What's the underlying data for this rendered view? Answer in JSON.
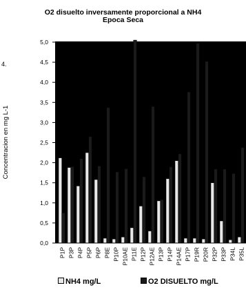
{
  "chart_data": {
    "type": "bar",
    "title": "O2 disuelto inversamente proporcional a NH4",
    "subtitle": "Epoca Seca",
    "ylabel": "Concentracion en mg L-1",
    "xlabel": "",
    "corner_mark": "4.",
    "ylim": [
      0,
      5
    ],
    "yticks": [
      "0,0",
      "0,5",
      "1,0",
      "1,5",
      "2,0",
      "2,5",
      "3,0",
      "3,5",
      "4,0",
      "4,5",
      "5,0"
    ],
    "grid": false,
    "legend_position": "bottom",
    "categories": [
      "P1P",
      "P3P",
      "P4P",
      "P5P",
      "P6P",
      "P8E",
      "P10P",
      "P10AE",
      "P11E",
      "P12P",
      "P12AE",
      "P13P",
      "P14P",
      "P14AE",
      "P17P",
      "P19R",
      "P20R",
      "P32P",
      "P33P",
      "P34L",
      "P35L"
    ],
    "series": [
      {
        "name": "NH4 mg/L",
        "color": "#e8e8e8",
        "values": [
          2.12,
          1.88,
          1.42,
          2.25,
          1.58,
          0.12,
          0.1,
          0.15,
          0.38,
          0.92,
          0.3,
          1.05,
          1.6,
          2.05,
          0.12,
          0.12,
          0.1,
          1.5,
          0.55,
          0.08,
          0.15
        ]
      },
      {
        "name": "O2 DISUELTO mg/L",
        "color": "#1a1a1a",
        "values": [
          0.75,
          1.9,
          2.1,
          2.65,
          1.92,
          3.37,
          1.77,
          1.85,
          5.05,
          1.65,
          3.4,
          1.08,
          1.9,
          2.22,
          3.76,
          4.97,
          4.52,
          1.84,
          1.84,
          1.73,
          2.38
        ]
      }
    ]
  }
}
